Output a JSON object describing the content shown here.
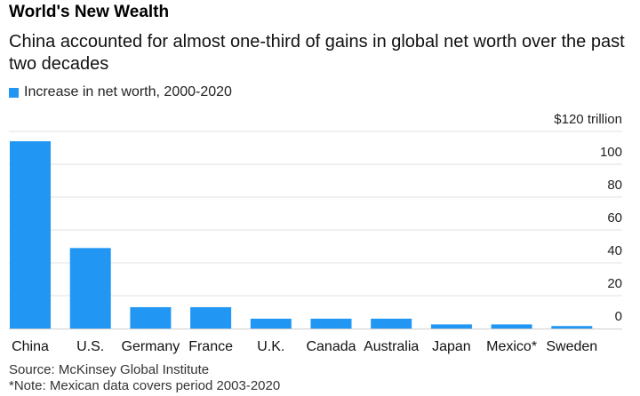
{
  "header": {
    "title": "World's New Wealth",
    "subtitle": "China accounted for almost one-third of gains in global net worth over the past two decades"
  },
  "footer": {
    "source": "Source: McKinsey Global Institute",
    "note": "*Note: Mexican data covers period 2003-2020"
  },
  "colors": {
    "bar": "#2196f3",
    "gridline": "#e2e2e2",
    "baseline": "#cfcfcf"
  },
  "chart_data": {
    "type": "bar",
    "legend_position": "top-left",
    "grid": true,
    "ylim": [
      0,
      120
    ],
    "y_ticks": [
      {
        "value": 0,
        "label": "0"
      },
      {
        "value": 20,
        "label": "20"
      },
      {
        "value": 40,
        "label": "40"
      },
      {
        "value": 60,
        "label": "60"
      },
      {
        "value": 80,
        "label": "80"
      },
      {
        "value": 100,
        "label": "100"
      },
      {
        "value": 120,
        "label": "$120 trillion"
      }
    ],
    "categories": [
      "China",
      "U.S.",
      "Germany",
      "France",
      "U.K.",
      "Canada",
      "Australia",
      "Japan",
      "Mexico*",
      "Sweden"
    ],
    "series": [
      {
        "name": "Increase in net worth, 2000-2020",
        "values": [
          114,
          49,
          13,
          13,
          6,
          6,
          6,
          2.5,
          2.5,
          1.5
        ]
      }
    ]
  }
}
